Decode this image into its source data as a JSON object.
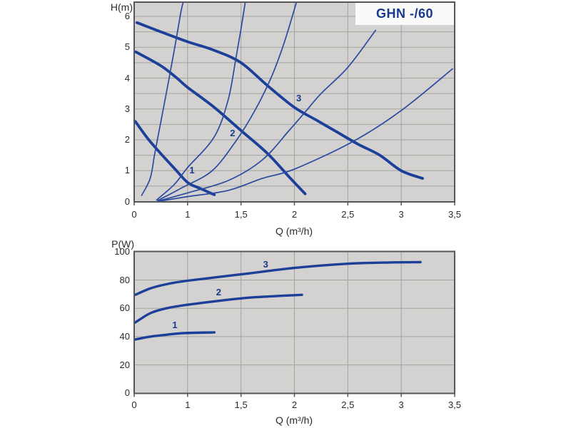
{
  "page": {
    "background": "#ffffff"
  },
  "palette": {
    "plot_bg": "#d3d2d0",
    "grid": "#a3a3a0",
    "frame": "#55555a",
    "pump_curve": "#1c3f99",
    "system_curve": "#2a4aa0",
    "power_curve": "#1c3f99",
    "navy_text": "#16388f",
    "axis_text": "#2b2b2b",
    "title_box_bg": "#fafaf8"
  },
  "chart_data": [
    {
      "id": "head-chart",
      "type": "line",
      "title": "GHN -/60",
      "xlabel": "Q (m³/h)",
      "ylabel": "H(m)",
      "x_ticks": [
        {
          "v": 0,
          "label": "0"
        },
        {
          "v": 1,
          "label": "1"
        },
        {
          "v": 1.5,
          "label": "1,5"
        },
        {
          "v": 2,
          "label": "2"
        },
        {
          "v": 2.5,
          "label": "2,5"
        },
        {
          "v": 3,
          "label": "3"
        },
        {
          "v": 3.5,
          "label": "3,5"
        }
      ],
      "y_ticks": [
        {
          "v": 0,
          "label": "0"
        },
        {
          "v": 1,
          "label": "1"
        },
        {
          "v": 2,
          "label": "2"
        },
        {
          "v": 3,
          "label": "3"
        },
        {
          "v": 4,
          "label": "4"
        },
        {
          "v": 5,
          "label": "5"
        },
        {
          "v": 6,
          "label": "6"
        }
      ],
      "ylim": [
        0,
        6.47
      ],
      "y_minor_step": 0.5,
      "grid": true,
      "legend_position": "none",
      "series": [
        {
          "name": "pump-curve-1",
          "label": "1",
          "role": "pump",
          "label_at": [
            1.05,
            0.98
          ],
          "points": [
            [
              0.02,
              2.6
            ],
            [
              0.25,
              2.05
            ],
            [
              0.5,
              1.55
            ],
            [
              0.75,
              1.08
            ],
            [
              1.0,
              0.62
            ],
            [
              1.12,
              0.42
            ],
            [
              1.25,
              0.22
            ]
          ]
        },
        {
          "name": "pump-curve-2",
          "label": "2",
          "role": "pump",
          "label_at": [
            1.43,
            2.18
          ],
          "points": [
            [
              0.03,
              4.85
            ],
            [
              0.5,
              4.4
            ],
            [
              0.8,
              4.0
            ],
            [
              1.0,
              3.7
            ],
            [
              1.25,
              3.05
            ],
            [
              1.5,
              2.3
            ],
            [
              1.75,
              1.55
            ],
            [
              1.95,
              0.8
            ],
            [
              2.1,
              0.25
            ]
          ]
        },
        {
          "name": "pump-curve-3",
          "label": "3",
          "role": "pump",
          "label_at": [
            2.05,
            3.32
          ],
          "points": [
            [
              0.05,
              5.8
            ],
            [
              0.5,
              5.5
            ],
            [
              1.0,
              5.18
            ],
            [
              1.25,
              4.9
            ],
            [
              1.5,
              4.5
            ],
            [
              1.75,
              3.75
            ],
            [
              2.0,
              3.05
            ],
            [
              2.2,
              2.65
            ],
            [
              2.4,
              2.25
            ],
            [
              2.6,
              1.85
            ],
            [
              2.8,
              1.5
            ],
            [
              3.0,
              1.0
            ],
            [
              3.2,
              0.75
            ]
          ]
        },
        {
          "name": "system-curve-a",
          "role": "system",
          "points": [
            [
              0.14,
              0.2
            ],
            [
              0.3,
              0.75
            ],
            [
              0.38,
              1.5
            ],
            [
              0.44,
              2.05
            ],
            [
              0.6,
              3.5
            ],
            [
              0.75,
              4.9
            ],
            [
              0.87,
              6.1
            ],
            [
              0.92,
              6.47
            ]
          ]
        },
        {
          "name": "system-curve-b",
          "role": "system",
          "points": [
            [
              0.42,
              0.05
            ],
            [
              0.75,
              0.55
            ],
            [
              1.0,
              1.1
            ],
            [
              1.25,
              2.1
            ],
            [
              1.38,
              3.3
            ],
            [
              1.45,
              4.6
            ],
            [
              1.5,
              5.6
            ],
            [
              1.54,
              6.47
            ]
          ]
        },
        {
          "name": "system-curve-c",
          "role": "system",
          "points": [
            [
              0.44,
              0.03
            ],
            [
              0.9,
              0.45
            ],
            [
              1.23,
              1.0
            ],
            [
              1.45,
              1.95
            ],
            [
              1.63,
              2.95
            ],
            [
              1.78,
              4.0
            ],
            [
              1.9,
              5.1
            ],
            [
              2.02,
              6.47
            ]
          ]
        },
        {
          "name": "system-curve-d",
          "role": "system",
          "points": [
            [
              0.46,
              0.02
            ],
            [
              1.0,
              0.28
            ],
            [
              1.38,
              0.68
            ],
            [
              1.7,
              1.35
            ],
            [
              1.95,
              2.3
            ],
            [
              2.1,
              2.9
            ],
            [
              2.25,
              3.5
            ],
            [
              2.5,
              4.35
            ],
            [
              2.76,
              5.55
            ]
          ]
        },
        {
          "name": "system-curve-e",
          "role": "system",
          "points": [
            [
              0.46,
              0.01
            ],
            [
              1.0,
              0.16
            ],
            [
              1.38,
              0.36
            ],
            [
              1.7,
              0.75
            ],
            [
              2.0,
              1.05
            ],
            [
              2.55,
              1.95
            ],
            [
              3.0,
              2.95
            ],
            [
              3.48,
              4.3
            ]
          ]
        }
      ]
    },
    {
      "id": "power-chart",
      "type": "line",
      "title": "",
      "xlabel": "Q (m³/h)",
      "ylabel": "P(W)",
      "x_ticks": [
        {
          "v": 0,
          "label": "0"
        },
        {
          "v": 1,
          "label": "1"
        },
        {
          "v": 1.5,
          "label": "1,5"
        },
        {
          "v": 2,
          "label": "2"
        },
        {
          "v": 2.5,
          "label": "2,5"
        },
        {
          "v": 3,
          "label": "3"
        },
        {
          "v": 3.5,
          "label": "3,5"
        }
      ],
      "y_ticks": [
        {
          "v": 0,
          "label": "0"
        },
        {
          "v": 20,
          "label": "20"
        },
        {
          "v": 40,
          "label": "40"
        },
        {
          "v": 60,
          "label": "60"
        },
        {
          "v": 80,
          "label": "80"
        },
        {
          "v": 100,
          "label": "100"
        }
      ],
      "ylim": [
        0,
        100
      ],
      "y_minor_step": 20,
      "grid": true,
      "legend_position": "none",
      "series": [
        {
          "name": "power-curve-1",
          "label": "1",
          "role": "power",
          "label_at": [
            0.78,
            47.5
          ],
          "points": [
            [
              0.02,
              38
            ],
            [
              0.3,
              40
            ],
            [
              0.6,
              41.3
            ],
            [
              0.9,
              42.4
            ],
            [
              1.25,
              43
            ]
          ]
        },
        {
          "name": "power-curve-2",
          "label": "2",
          "role": "power",
          "label_at": [
            1.3,
            70.8
          ],
          "points": [
            [
              0.02,
              50
            ],
            [
              0.3,
              56.5
            ],
            [
              0.6,
              60
            ],
            [
              1.0,
              62.5
            ],
            [
              1.5,
              67
            ],
            [
              1.8,
              68.5
            ],
            [
              2.07,
              69.5
            ]
          ]
        },
        {
          "name": "power-curve-3",
          "label": "3",
          "role": "power",
          "label_at": [
            1.74,
            90.5
          ],
          "points": [
            [
              0.02,
              69.5
            ],
            [
              0.3,
              74
            ],
            [
              0.6,
              77
            ],
            [
              1.0,
              79.5
            ],
            [
              1.5,
              84
            ],
            [
              2.0,
              88.5
            ],
            [
              2.5,
              91.5
            ],
            [
              2.9,
              92.4
            ],
            [
              3.18,
              92.6
            ]
          ]
        }
      ]
    }
  ]
}
